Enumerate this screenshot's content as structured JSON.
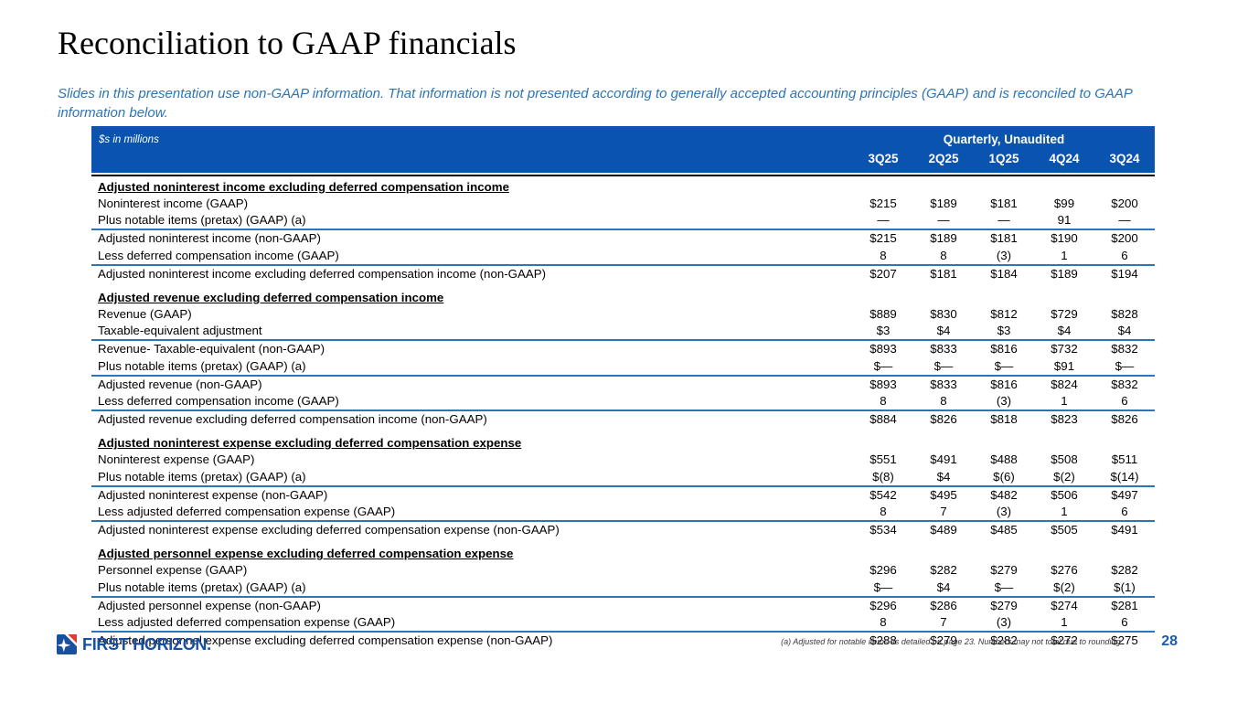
{
  "slide": {
    "title": "Reconciliation to GAAP financials",
    "subtitle": "Slides in this presentation use non-GAAP information. That information is not presented according to generally accepted accounting principles (GAAP) and is reconciled to GAAP information below.",
    "logo_text": "FIRST HORIZON.",
    "footnote": "(a) Adjusted for notable items as detailed on page 23. Numbers may not total due to rounding.",
    "page_number": "28"
  },
  "colors": {
    "header_blue": "#0A53AE",
    "rule_blue": "#2E75B6",
    "subtitle_blue": "#2E74B5",
    "logo_blue": "#1A4FA0",
    "accent_red": "#E03C31",
    "page_number_blue": "#1F5BA8"
  },
  "table": {
    "units_label": "$s in millions",
    "group_header": "Quarterly, Unaudited",
    "columns": [
      "3Q25",
      "2Q25",
      "1Q25",
      "4Q24",
      "3Q24"
    ],
    "sections": [
      {
        "title": "Adjusted noninterest income excluding deferred compensation income",
        "rows": [
          {
            "label": "Noninterest income (GAAP)",
            "values": [
              "$215",
              "$189",
              "$181",
              "$99",
              "$200"
            ],
            "rule": false
          },
          {
            "label": "Plus notable items (pretax) (GAAP) (a)",
            "values": [
              "—",
              "—",
              "—",
              "91",
              "—"
            ],
            "rule": false
          },
          {
            "label": "Adjusted noninterest income (non-GAAP)",
            "values": [
              "$215",
              "$189",
              "$181",
              "$190",
              "$200"
            ],
            "rule": true
          },
          {
            "label": "Less deferred compensation income (GAAP)",
            "values": [
              "8",
              "8",
              "(3)",
              "1",
              "6"
            ],
            "rule": false
          },
          {
            "label": "Adjusted noninterest income excluding deferred compensation income (non-GAAP)",
            "values": [
              "$207",
              "$181",
              "$184",
              "$189",
              "$194"
            ],
            "rule": true
          }
        ]
      },
      {
        "title": "Adjusted revenue excluding deferred compensation income",
        "rows": [
          {
            "label": "Revenue (GAAP)",
            "values": [
              "$889",
              "$830",
              "$812",
              "$729",
              "$828"
            ],
            "rule": false
          },
          {
            "label": "Taxable-equivalent adjustment",
            "values": [
              "$3",
              "$4",
              "$3",
              "$4",
              "$4"
            ],
            "rule": false
          },
          {
            "label": "Revenue- Taxable-equivalent (non-GAAP)",
            "values": [
              "$893",
              "$833",
              "$816",
              "$732",
              "$832"
            ],
            "rule": true
          },
          {
            "label": "Plus notable items (pretax) (GAAP) (a)",
            "values": [
              "$—",
              "$—",
              "$—",
              "$91",
              "$—"
            ],
            "rule": false
          },
          {
            "label": "Adjusted revenue (non-GAAP)",
            "values": [
              "$893",
              "$833",
              "$816",
              "$824",
              "$832"
            ],
            "rule": true
          },
          {
            "label": "Less deferred compensation income (GAAP)",
            "values": [
              "8",
              "8",
              "(3)",
              "1",
              "6"
            ],
            "rule": false
          },
          {
            "label": "Adjusted revenue excluding deferred compensation income (non-GAAP)",
            "values": [
              "$884",
              "$826",
              "$818",
              "$823",
              "$826"
            ],
            "rule": true
          }
        ]
      },
      {
        "title": "Adjusted noninterest expense excluding deferred compensation expense",
        "rows": [
          {
            "label": "Noninterest expense (GAAP)",
            "values": [
              "$551",
              "$491",
              "$488",
              "$508",
              "$511"
            ],
            "rule": false
          },
          {
            "label": "Plus notable items (pretax) (GAAP) (a)",
            "values": [
              "$(8)",
              "$4",
              "$(6)",
              "$(2)",
              "$(14)"
            ],
            "rule": false
          },
          {
            "label": "Adjusted noninterest expense (non-GAAP)",
            "values": [
              "$542",
              "$495",
              "$482",
              "$506",
              "$497"
            ],
            "rule": true
          },
          {
            "label": "Less adjusted deferred compensation expense (GAAP)",
            "values": [
              "8",
              "7",
              "(3)",
              "1",
              "6"
            ],
            "rule": false
          },
          {
            "label": "Adjusted noninterest expense excluding deferred compensation expense (non-GAAP)",
            "values": [
              "$534",
              "$489",
              "$485",
              "$505",
              "$491"
            ],
            "rule": true
          }
        ]
      },
      {
        "title": "Adjusted personnel expense excluding deferred compensation expense",
        "rows": [
          {
            "label": "Personnel expense (GAAP)",
            "values": [
              "$296",
              "$282",
              "$279",
              "$276",
              "$282"
            ],
            "rule": false
          },
          {
            "label": "Plus notable items (pretax) (GAAP) (a)",
            "values": [
              "$—",
              "$4",
              "$—",
              "$(2)",
              "$(1)"
            ],
            "rule": false
          },
          {
            "label": "Adjusted personnel expense (non-GAAP)",
            "values": [
              "$296",
              "$286",
              "$279",
              "$274",
              "$281"
            ],
            "rule": true
          },
          {
            "label": "Less adjusted deferred compensation expense (GAAP)",
            "values": [
              "8",
              "7",
              "(3)",
              "1",
              "6"
            ],
            "rule": false
          },
          {
            "label": "Adjusted personnel expense excluding deferred compensation expense (non-GAAP)",
            "values": [
              "$288",
              "$279",
              "$282",
              "$272",
              "$275"
            ],
            "rule": true
          }
        ]
      }
    ]
  }
}
